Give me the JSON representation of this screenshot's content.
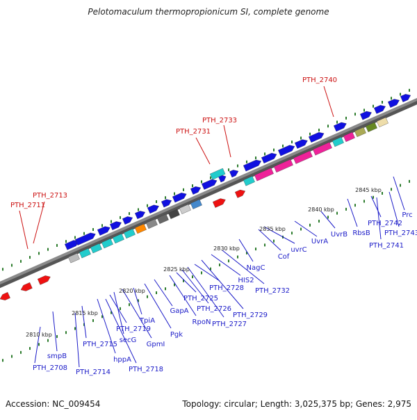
{
  "title": "Pelotomaculum thermopropionicum SI, complete genome",
  "accession": "Accession: NC_009454",
  "topology": "Topology: circular; Length: 3,025,375 bp; Genes: 2,975",
  "colors": {
    "backbone": "#8a8a8a",
    "forward_gene": "#1010e0",
    "reverse_gene": "#ee1111",
    "tick": "#2a7a2a",
    "label_blue": "#1a1ac8",
    "label_red": "#cc1111"
  },
  "scale_labels": [
    "2810 kbp",
    "2815 kbp",
    "2820 kbp",
    "2825 kbp",
    "2830 kbp",
    "2835 kbp",
    "2840 kbp",
    "2845 kbp"
  ],
  "top_labels": [
    "PTH_2711",
    "PTH_2713",
    "PTH_2731",
    "PTH_2733",
    "PTH_2740"
  ],
  "bottom_labels": [
    "PTH_2708",
    "smpB",
    "PTH_2714",
    "PTH_2715",
    "hppA",
    "PTH_2718",
    "PTH_2719",
    "secG",
    "GpmI",
    "TpiA",
    "Pgk",
    "GapA",
    "RpoN",
    "PTH_2725",
    "PTH_2726",
    "PTH_2727",
    "PTH_2728",
    "PTH_2729",
    "HIS2",
    "PTH_2732",
    "NagC",
    "Cof",
    "uvrC",
    "UvrA",
    "UvrB",
    "RbsB",
    "PTH_2742",
    "PTH_2741",
    "PTH_2743",
    "Prc"
  ]
}
